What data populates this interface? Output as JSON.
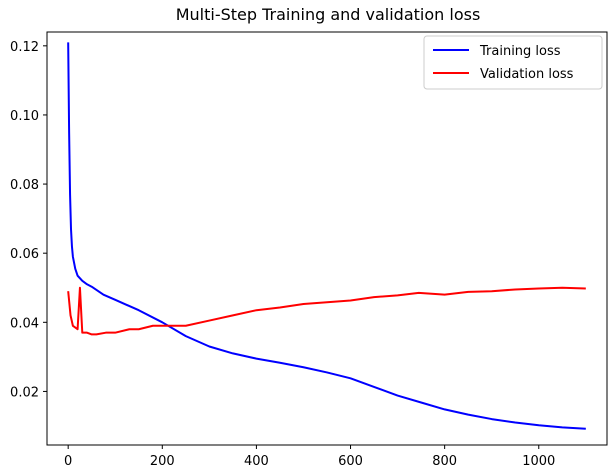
{
  "chart_data": {
    "type": "line",
    "title": "Multi-Step Training and validation loss",
    "xlabel": "",
    "ylabel": "",
    "xlim": [
      -45,
      1145
    ],
    "ylim": [
      0.0045,
      0.124
    ],
    "xticks": [
      0,
      200,
      400,
      600,
      800,
      1000
    ],
    "yticks": [
      0.02,
      0.04,
      0.06,
      0.08,
      0.1,
      0.12
    ],
    "ytick_labels": [
      "0.02",
      "0.04",
      "0.06",
      "0.08",
      "0.10",
      "0.12"
    ],
    "grid": false,
    "legend_position": "top-right",
    "series": [
      {
        "name": "Training loss",
        "color": "#0000ff",
        "x": [
          0,
          2,
          4,
          6,
          8,
          10,
          15,
          20,
          30,
          40,
          50,
          75,
          100,
          150,
          200,
          250,
          300,
          350,
          400,
          450,
          500,
          550,
          600,
          650,
          700,
          750,
          800,
          850,
          900,
          950,
          1000,
          1050,
          1100
        ],
        "y": [
          0.121,
          0.095,
          0.077,
          0.067,
          0.062,
          0.059,
          0.0555,
          0.0535,
          0.052,
          0.051,
          0.0503,
          0.048,
          0.0465,
          0.0435,
          0.04,
          0.036,
          0.033,
          0.031,
          0.0295,
          0.0283,
          0.027,
          0.0255,
          0.0238,
          0.0213,
          0.0188,
          0.0168,
          0.0148,
          0.0133,
          0.012,
          0.011,
          0.0102,
          0.0096,
          0.0092
        ]
      },
      {
        "name": "Validation loss",
        "color": "#ff0000",
        "x": [
          0,
          5,
          10,
          20,
          25,
          30,
          40,
          50,
          60,
          80,
          100,
          130,
          150,
          180,
          200,
          250,
          300,
          350,
          400,
          450,
          500,
          550,
          600,
          650,
          700,
          745,
          800,
          850,
          900,
          950,
          1000,
          1050,
          1100
        ],
        "y": [
          0.049,
          0.042,
          0.039,
          0.038,
          0.05,
          0.037,
          0.037,
          0.0365,
          0.0365,
          0.037,
          0.037,
          0.038,
          0.038,
          0.039,
          0.039,
          0.039,
          0.0405,
          0.042,
          0.0435,
          0.0443,
          0.0453,
          0.0458,
          0.0463,
          0.0473,
          0.0478,
          0.0485,
          0.048,
          0.0488,
          0.049,
          0.0495,
          0.0498,
          0.05,
          0.0498
        ]
      }
    ]
  }
}
